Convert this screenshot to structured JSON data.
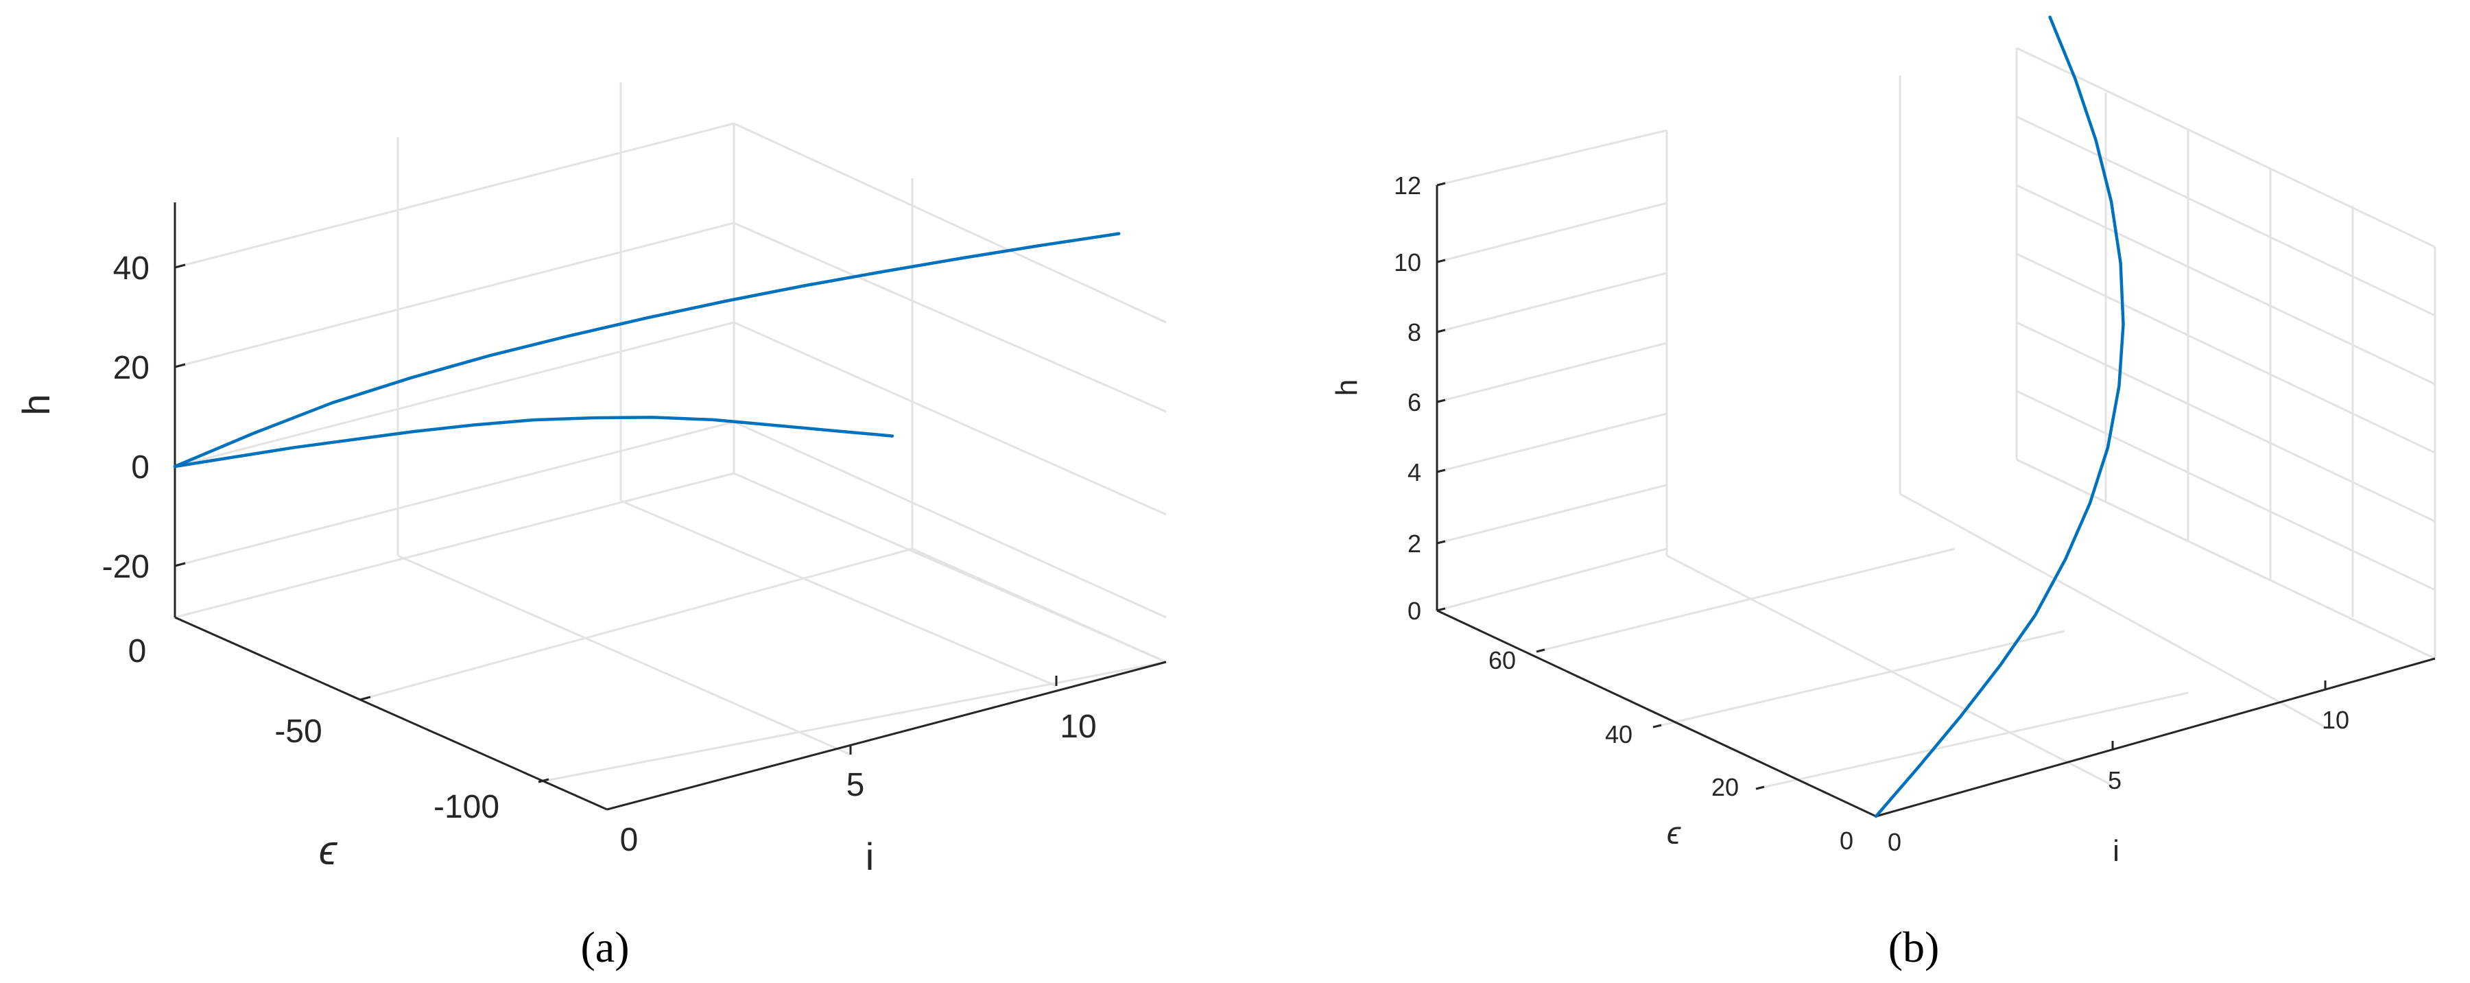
{
  "chart_data": [
    {
      "type": "line",
      "subplot_label": "(a)",
      "axes": {
        "i": {
          "label": "i",
          "range": [
            0,
            12
          ],
          "ticks": [
            0,
            5,
            10
          ]
        },
        "epsilon": {
          "label": "ϵ",
          "range": [
            -130,
            0
          ],
          "ticks": [
            0,
            -50,
            -100
          ]
        },
        "h": {
          "label": "h",
          "range": [
            -30,
            55
          ],
          "ticks": [
            -20,
            0,
            20,
            40
          ]
        }
      },
      "grid": true,
      "series": [
        {
          "x": [
            0,
            1,
            2,
            3,
            4,
            5,
            6,
            7,
            8,
            9,
            10,
            11,
            12
          ],
          "epsilon": [
            0,
            0,
            0,
            0,
            0,
            0,
            0,
            0,
            0,
            0,
            0,
            0,
            0
          ],
          "h": [
            0,
            9,
            17,
            23,
            28,
            32,
            35.5,
            38.5,
            41,
            43,
            44.8,
            46.3,
            47.5
          ]
        },
        {
          "x": [
            0,
            1,
            2,
            3,
            4,
            5,
            6,
            7,
            8,
            9,
            10,
            11,
            12
          ],
          "epsilon": [
            0,
            0,
            0,
            0,
            0,
            0,
            0,
            0,
            0,
            0,
            0,
            0,
            0
          ],
          "h": [
            0,
            1,
            2,
            2.5,
            3,
            3,
            2.5,
            1,
            -1,
            -4,
            -8,
            -12,
            -16
          ]
        }
      ]
    },
    {
      "type": "line",
      "subplot_label": "(b)",
      "axes": {
        "i": {
          "label": "i",
          "range": [
            0,
            13
          ],
          "ticks": [
            0,
            5,
            10
          ]
        },
        "epsilon": {
          "label": "ϵ",
          "range": [
            0,
            70
          ],
          "ticks": [
            0,
            20,
            40,
            60
          ]
        },
        "h": {
          "label": "h",
          "range": [
            0,
            12
          ],
          "ticks": [
            0,
            2,
            4,
            6,
            8,
            10,
            12
          ]
        }
      },
      "grid": true,
      "series": [
        {
          "x": [
            0,
            0,
            0,
            0,
            0,
            0,
            0,
            0,
            0,
            0,
            0,
            0,
            0,
            0,
            0
          ],
          "epsilon": [
            0,
            5,
            10,
            15,
            20,
            25,
            30,
            35,
            40,
            45,
            50,
            55,
            60,
            65,
            70
          ],
          "h": [
            0,
            0.9,
            1.8,
            2.7,
            3.6,
            4.6,
            5.6,
            6.6,
            7.7,
            8.8,
            9.9,
            11.0,
            12.1,
            13.2,
            14.3
          ]
        }
      ]
    }
  ]
}
